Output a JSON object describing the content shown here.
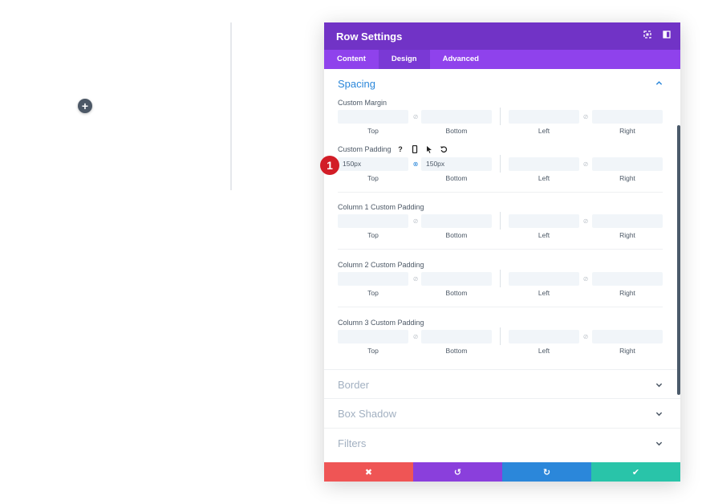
{
  "canvas": {
    "add_icon": "plus-icon",
    "add_glyph": "+"
  },
  "modal": {
    "title": "Row Settings",
    "tabs": [
      {
        "label": "Content",
        "active": false
      },
      {
        "label": "Design",
        "active": true
      },
      {
        "label": "Advanced",
        "active": false
      }
    ],
    "spacing": {
      "title": "Spacing",
      "groups": [
        {
          "label": "Custom Margin",
          "values": [
            "",
            "",
            "",
            ""
          ],
          "sublabels": [
            "Top",
            "Bottom",
            "Left",
            "Right"
          ]
        },
        {
          "label": "Custom Padding",
          "values": [
            "150px",
            "150px",
            "",
            ""
          ],
          "sublabels": [
            "Top",
            "Bottom",
            "Left",
            "Right"
          ],
          "icons": [
            "?",
            "mobile-icon",
            "cursor-icon",
            "reset-icon"
          ],
          "help_glyph": "?"
        },
        {
          "label": "Column 1 Custom Padding",
          "values": [
            "",
            "",
            "",
            ""
          ],
          "sublabels": [
            "Top",
            "Bottom",
            "Left",
            "Right"
          ]
        },
        {
          "label": "Column 2 Custom Padding",
          "values": [
            "",
            "",
            "",
            ""
          ],
          "sublabels": [
            "Top",
            "Bottom",
            "Left",
            "Right"
          ]
        },
        {
          "label": "Column 3 Custom Padding",
          "values": [
            "",
            "",
            "",
            ""
          ],
          "sublabels": [
            "Top",
            "Bottom",
            "Left",
            "Right"
          ]
        }
      ]
    },
    "collapsed_sections": [
      "Border",
      "Box Shadow",
      "Filters"
    ],
    "footer": {
      "cancel": "✖",
      "undo": "↺",
      "redo": "↻",
      "save": "✔"
    },
    "badge": "1",
    "colors": {
      "header": "#7133c6",
      "tabs": "#8f42ec",
      "accent": "#2b87da",
      "cancel": "#ef5555",
      "undo": "#8a3fdc",
      "redo": "#2b87da",
      "save": "#29c4a9",
      "badge": "#d21d27"
    }
  }
}
